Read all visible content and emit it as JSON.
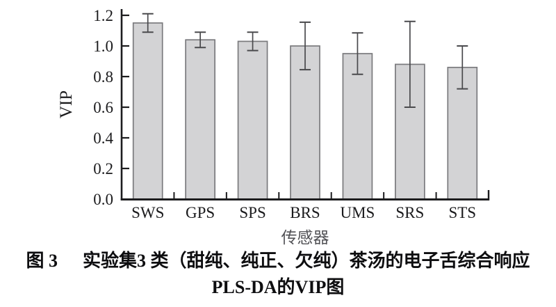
{
  "chart_data": {
    "type": "bar",
    "categories": [
      "SWS",
      "GPS",
      "SPS",
      "BRS",
      "UMS",
      "SRS",
      "STS"
    ],
    "values": [
      1.15,
      1.04,
      1.03,
      1.0,
      0.95,
      0.88,
      0.86
    ],
    "error_bars": [
      0.06,
      0.05,
      0.06,
      0.155,
      0.135,
      0.28,
      0.14
    ],
    "xlabel": "传感器",
    "ylabel": "VIP",
    "ylim": [
      0.0,
      1.2
    ],
    "yticks": [
      0.0,
      0.2,
      0.4,
      0.6,
      0.8,
      1.0,
      1.2
    ],
    "ytick_labels": [
      "0.0",
      "0.2",
      "0.4",
      "0.6",
      "0.8",
      "1.0",
      "1.2"
    ],
    "grid": false,
    "legend_position": "none",
    "colors": {
      "bar_fill": "#d3d3d5",
      "bar_border": "#7a7a7d",
      "error_bar": "#4a4a4d",
      "axis": "#1c1c1e",
      "tick_text": "#1b1b1d",
      "xlabel_text": "#515155"
    }
  },
  "figure": {
    "caption_label": "图 3",
    "caption_line1": "实验集3 类（甜纯、纯正、欠纯）茶汤的电子舌综合响应",
    "caption_line2": "PLS-DA的VIP图"
  }
}
